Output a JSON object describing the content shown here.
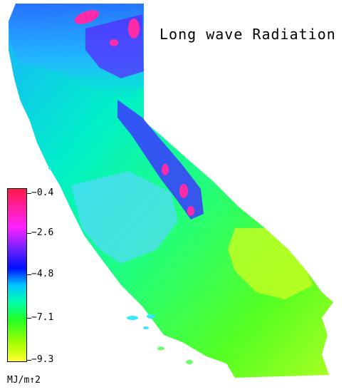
{
  "title": "Long wave Radiation",
  "legend": {
    "ticks": [
      "−0.4",
      "−2.6",
      "−4.8",
      "−7.1",
      "−9.3"
    ],
    "tick_values": [
      -0.4,
      -2.6,
      -4.8,
      -7.1,
      -9.3
    ],
    "unit": "MJ/m↑2",
    "colors": [
      "#ff1a4a",
      "#ff22ff",
      "#7a22ff",
      "#0010ff",
      "#00c8ff",
      "#00ffaa",
      "#22ff22",
      "#aaff00",
      "#ffff33"
    ]
  },
  "map": {
    "region": "California",
    "colors": {
      "north_coast": "#22c8ff",
      "central": "#00ffb0",
      "valley": "#22ff66",
      "sierra": "#4a2aff",
      "sierra_peaks": "#ff2aa8",
      "south_desert": "#5aff22",
      "south_east": "#aaff22",
      "coast_south": "#44d8ff"
    }
  }
}
